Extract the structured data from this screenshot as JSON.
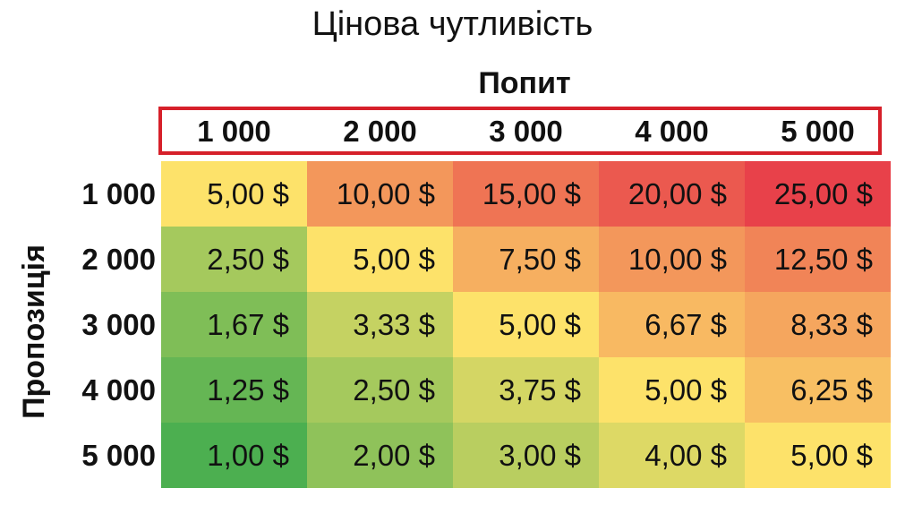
{
  "chart_data": {
    "type": "heatmap",
    "title": "Цінова чутливість",
    "xlabel": "Попит",
    "ylabel": "Пропозиція",
    "x_categories": [
      "1 000",
      "2 000",
      "3 000",
      "4 000",
      "5 000"
    ],
    "y_categories": [
      "1 000",
      "2 000",
      "3 000",
      "4 000",
      "5 000"
    ],
    "values": [
      [
        "5,00 $",
        "10,00 $",
        "15,00 $",
        "20,00 $",
        "25,00 $"
      ],
      [
        "2,50 $",
        "5,00 $",
        "7,50 $",
        "10,00 $",
        "12,50 $"
      ],
      [
        "1,67 $",
        "3,33 $",
        "5,00 $",
        "6,67 $",
        "8,33 $"
      ],
      [
        "1,25 $",
        "2,50 $",
        "3,75 $",
        "5,00 $",
        "6,25 $"
      ],
      [
        "1,00 $",
        "2,00 $",
        "3,00 $",
        "4,00 $",
        "5,00 $"
      ]
    ],
    "numeric_values": [
      [
        5.0,
        10.0,
        15.0,
        20.0,
        25.0
      ],
      [
        2.5,
        5.0,
        7.5,
        10.0,
        12.5
      ],
      [
        1.67,
        3.33,
        5.0,
        6.67,
        8.33
      ],
      [
        1.25,
        2.5,
        3.75,
        5.0,
        6.25
      ],
      [
        1.0,
        2.0,
        3.0,
        4.0,
        5.0
      ]
    ],
    "color_scale": {
      "low": "#4caf50",
      "mid": "#fde26a",
      "high": "#e8414a"
    },
    "header_highlight_color": "#d6202a"
  }
}
